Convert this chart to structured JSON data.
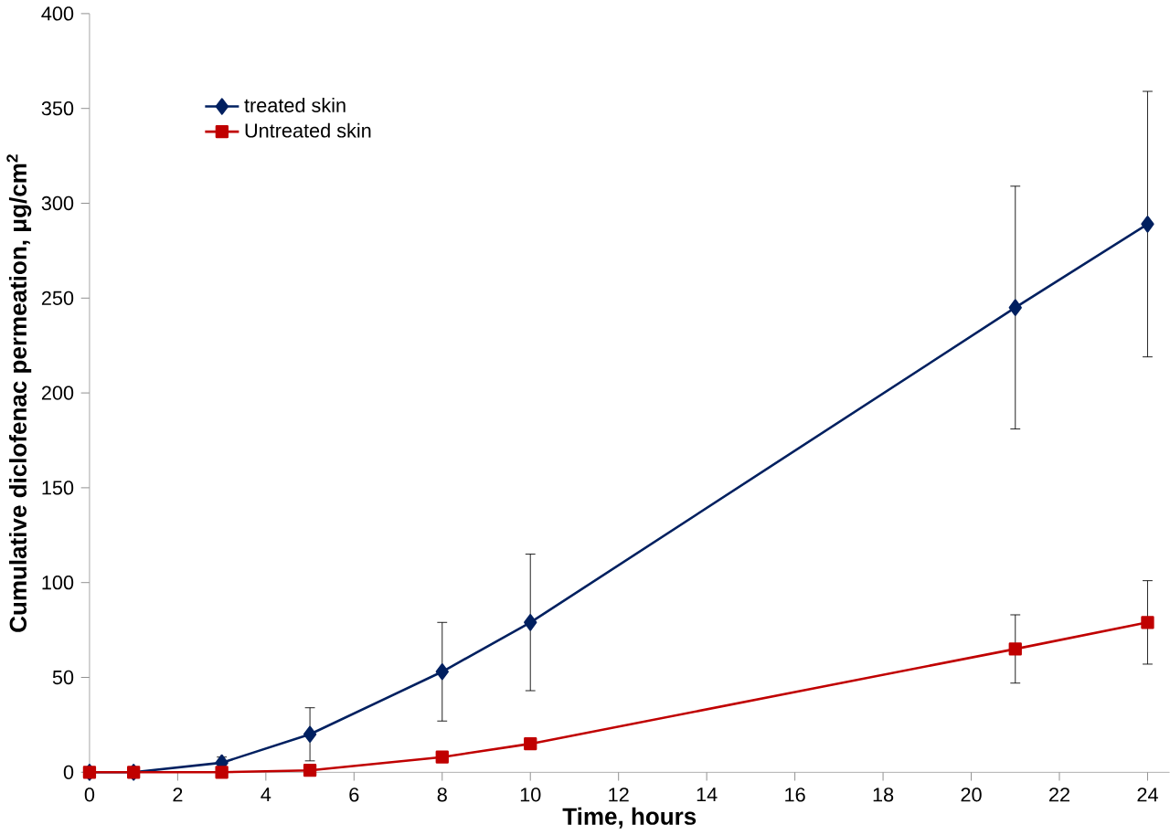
{
  "chart_data": {
    "type": "line",
    "xlabel": "Time, hours",
    "ylabel": "Cumulative diclofenac permeation, μg/cm$^{2}$",
    "x": [
      0,
      1,
      3,
      5,
      8,
      10,
      21,
      24
    ],
    "series": [
      {
        "name": "treated skin",
        "color": "#002060",
        "marker": "diamond",
        "values": [
          0,
          0,
          5,
          20,
          53,
          79,
          245,
          289
        ],
        "errors": [
          null,
          null,
          3,
          14,
          26,
          36,
          64,
          70
        ]
      },
      {
        "name": "Untreated skin",
        "color": "#c00000",
        "marker": "square",
        "values": [
          0,
          0,
          0,
          1,
          8,
          15,
          65,
          79
        ],
        "errors": [
          null,
          null,
          null,
          null,
          null,
          null,
          18,
          22
        ]
      }
    ],
    "xlim": [
      0,
      24.5
    ],
    "ylim": [
      0,
      400
    ],
    "xticks": [
      0,
      2,
      4,
      6,
      8,
      10,
      12,
      14,
      16,
      18,
      20,
      22,
      24
    ],
    "yticks": [
      0,
      50,
      100,
      150,
      200,
      250,
      300,
      350,
      400
    ],
    "grid": false,
    "legend": "top left",
    "line_style": "solid"
  }
}
